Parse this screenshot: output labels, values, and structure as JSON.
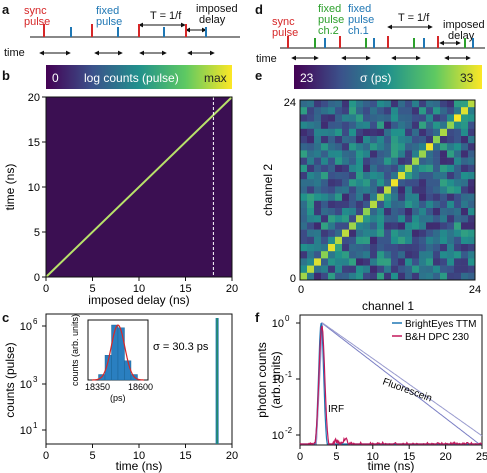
{
  "panels": {
    "a": {
      "letter": "a",
      "sync_label": [
        "sync",
        "pulse"
      ],
      "fixed_label": [
        "fixed",
        "pulse"
      ],
      "period_label": "T = 1/f",
      "delay_label": [
        "imposed",
        "delay"
      ],
      "time_label": "time",
      "colors": {
        "sync": "#d62728",
        "fixed": "#1f77b4"
      }
    },
    "b": {
      "letter": "b",
      "colorbar": {
        "min_label": "0",
        "title": "log counts (pulse)",
        "max_label": "max"
      },
      "chart_data": {
        "type": "heatmap",
        "xlabel": "imposed delay (ns)",
        "ylabel": "time (ns)",
        "xlim": [
          0,
          20
        ],
        "ylim": [
          0,
          20
        ],
        "xticks": [
          "0",
          "5",
          "10",
          "15",
          "20"
        ],
        "yticks": [
          "0",
          "5",
          "10",
          "15",
          "20"
        ],
        "diagonal": {
          "x": [
            0,
            20
          ],
          "y": [
            0,
            20
          ]
        },
        "dashed_line_x": 18
      }
    },
    "c": {
      "letter": "c",
      "sigma_label": "σ = 30.3 ps",
      "chart_data": {
        "type": "bar",
        "xlabel": "time (ns)",
        "ylabel": "counts (pulse)",
        "xlim": [
          0,
          20
        ],
        "xticks": [
          "0",
          "5",
          "10",
          "15",
          "20"
        ],
        "yticks": [
          "10",
          "10",
          "10"
        ],
        "ytick_exp": [
          "1",
          "3",
          "6"
        ],
        "peak_x": 18.4,
        "inset": {
          "xlabel": "(ps)",
          "ylabel": "counts (arb. units)",
          "xticks": [
            "18350",
            "18600"
          ],
          "bins": [
            18420,
            18440,
            18460,
            18480,
            18500,
            18520
          ],
          "values": [
            0.1,
            0.45,
            1.0,
            0.95,
            0.35,
            0.1
          ]
        }
      }
    },
    "d": {
      "letter": "d",
      "sync_label": [
        "sync",
        "pulse"
      ],
      "fixed2_label": [
        "fixed",
        "pulse",
        "ch.2"
      ],
      "fixed1_label": [
        "fixed",
        "pulse",
        "ch.1"
      ],
      "period_label": "T = 1/f",
      "delay_label": [
        "imposed",
        "delay"
      ],
      "time_label": "time",
      "colors": {
        "sync": "#d62728",
        "ch2": "#2ca02c",
        "ch1": "#1f77b4"
      }
    },
    "e": {
      "letter": "e",
      "colorbar": {
        "min_label": "23",
        "title": "σ (ps)",
        "max_label": "33"
      },
      "chart_data": {
        "type": "heatmap",
        "xlabel": "channel 1",
        "ylabel": "channel 2",
        "xticks": [
          "0",
          "24"
        ],
        "yticks": [
          "0",
          "24"
        ],
        "size": 25,
        "value_range": [
          23,
          33
        ]
      }
    },
    "f": {
      "letter": "f",
      "annotations": {
        "fluorescein": "Fluorescein",
        "irf": "IRF"
      },
      "chart_data": {
        "type": "line",
        "xlabel": "time (ns)",
        "ylabel": [
          "photon counts",
          "(arb. units)"
        ],
        "xlim": [
          0,
          25
        ],
        "xticks": [
          "0",
          "5",
          "10",
          "15",
          "20",
          "25"
        ],
        "yticks": [
          "10",
          "10",
          "10"
        ],
        "ytick_exp": [
          "0",
          "-1",
          "-2"
        ],
        "series": [
          {
            "name": "BrightEyes TTM",
            "color": "#1f77b4"
          },
          {
            "name": "B&H DPC 230",
            "color": "#c2185b"
          }
        ]
      }
    }
  }
}
